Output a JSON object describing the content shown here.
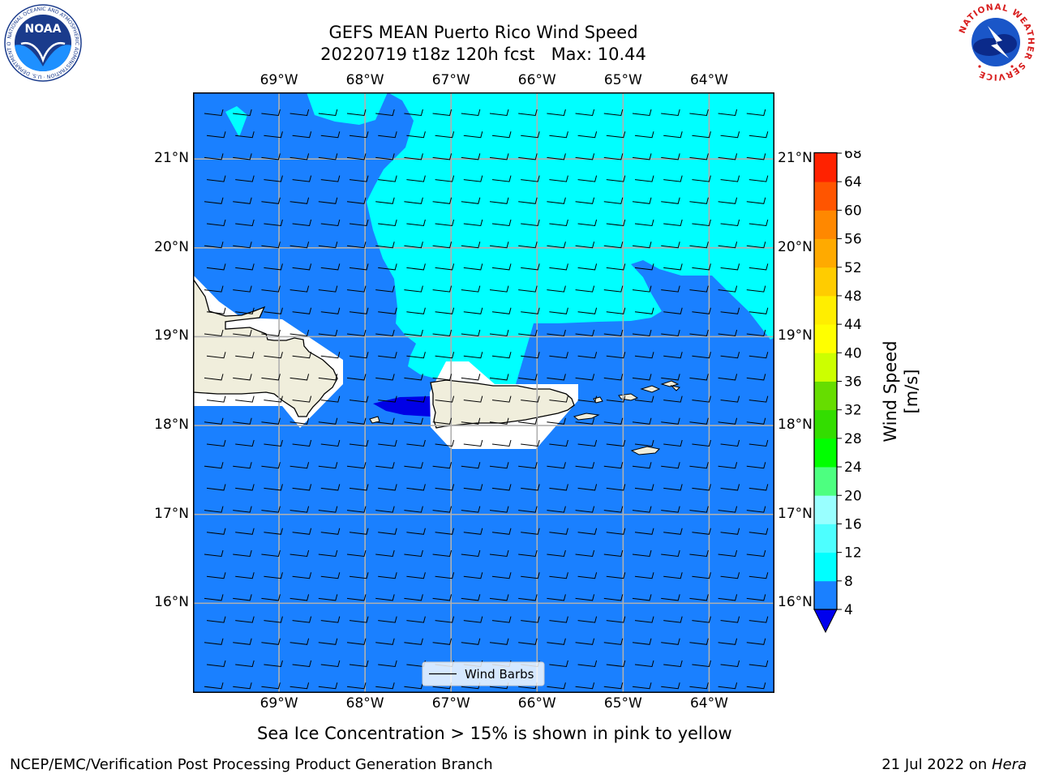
{
  "header": {
    "title_line1": "GEFS MEAN Puerto Rico Wind Speed",
    "title_line2": "20220719 t18z 120h fcst   Max: 10.44"
  },
  "logos": {
    "noaa_text": "NOAA",
    "noaa_ring_text": "NATIONAL OCEANIC AND ATMOSPHERIC ADMINISTRATION · U.S. DEPARTMENT OF COMMERCE",
    "nws_ring_text": "NATIONAL WEATHER SERVICE"
  },
  "map": {
    "lon_ticks": [
      "69°W",
      "68°W",
      "67°W",
      "66°W",
      "65°W",
      "64°W"
    ],
    "lat_ticks": [
      "21°N",
      "20°N",
      "19°N",
      "18°N",
      "17°N",
      "16°N"
    ],
    "extent": {
      "lon_min": -70.0,
      "lon_max": -63.25,
      "lat_min": 15.0,
      "lat_max": 21.75
    },
    "legend_label": "Wind Barbs",
    "colors": {
      "base": "#1a80ff",
      "band": "#00ffff",
      "low": "#0000e6",
      "land": "#f0eedc",
      "mask": "#ffffff"
    }
  },
  "colorbar": {
    "label": "Wind Speed [m/s]",
    "ticks": [
      "68",
      "64",
      "60",
      "56",
      "52",
      "48",
      "44",
      "40",
      "36",
      "32",
      "28",
      "24",
      "20",
      "16",
      "12",
      "8",
      "4"
    ],
    "levels": [
      4,
      8,
      12,
      16,
      20,
      24,
      28,
      32,
      36,
      40,
      44,
      48,
      52,
      56,
      60,
      64,
      68
    ],
    "bin_colors": [
      "#1a80ff",
      "#00ffff",
      "#4dffff",
      "#99ffff",
      "#4dff80",
      "#00ff00",
      "#33dd00",
      "#66dd00",
      "#ccff00",
      "#ffff00",
      "#ffee00",
      "#ffcc00",
      "#ffaa00",
      "#ff8800",
      "#ff5500",
      "#ff2200"
    ],
    "extend_color": "#0000ee"
  },
  "footer": {
    "note": "Sea Ice Concentration > 15% is shown in pink to yellow",
    "org": "NCEP/EMC/Verification Post Processing Product Generation Branch",
    "date": "21 Jul 2022 on",
    "host": "Hera"
  }
}
